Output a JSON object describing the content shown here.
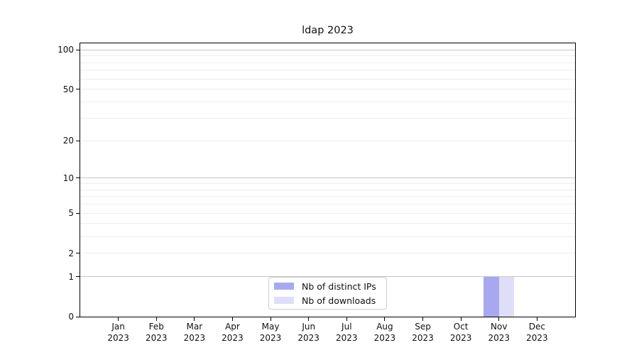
{
  "chart_data": {
    "type": "bar",
    "title": "ldap 2023",
    "categories": [
      "Jan 2023",
      "Feb 2023",
      "Mar 2023",
      "Apr 2023",
      "May 2023",
      "Jun 2023",
      "Jul 2023",
      "Aug 2023",
      "Sep 2023",
      "Oct 2023",
      "Nov 2023",
      "Dec 2023"
    ],
    "series": [
      {
        "name": "Nb of distinct IPs",
        "color": "#a8a8f0",
        "values": [
          0,
          0,
          0,
          0,
          0,
          0,
          0,
          0,
          0,
          0,
          1,
          0
        ]
      },
      {
        "name": "Nb of downloads",
        "color": "#dedef8",
        "values": [
          0,
          0,
          0,
          0,
          0,
          0,
          0,
          0,
          0,
          0,
          1,
          0
        ]
      }
    ],
    "xlabel": "",
    "ylabel": "",
    "yscale": "log1p",
    "ylim": [
      0,
      112
    ],
    "y_ticks": [
      0,
      1,
      2,
      5,
      10,
      20,
      50,
      100
    ],
    "y_tick_labels": [
      "0",
      "1",
      "2",
      "5",
      "10",
      "20",
      "50",
      "100"
    ],
    "y_major_gridlines": [
      1,
      10,
      100
    ],
    "y_minor_gridlines": [
      2,
      3,
      4,
      5,
      6,
      7,
      8,
      9,
      20,
      30,
      40,
      50,
      60,
      70,
      80,
      90
    ],
    "grid": true,
    "legend": {
      "position": "lower center",
      "entries": [
        "Nb of distinct IPs",
        "Nb of downloads"
      ]
    },
    "colors": {
      "major_grid": "#c6c6c6",
      "minor_grid": "#ededed",
      "axis": "#000000",
      "background": "#ffffff"
    }
  }
}
